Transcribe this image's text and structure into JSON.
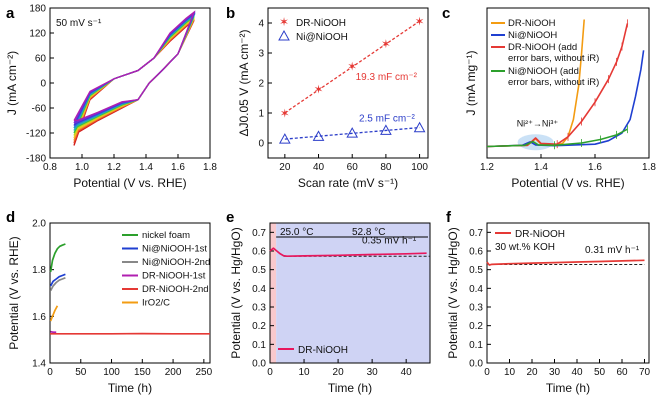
{
  "chart_data": [
    {
      "panel": "a",
      "type": "line",
      "annotation": "50 mV s⁻¹",
      "xlabel": "Potential (V vs. RHE)",
      "ylabel": "J (mA cm⁻²)",
      "xlim": [
        0.8,
        1.8
      ],
      "ylim": [
        -180,
        180
      ],
      "xticks": [
        "0.8",
        "1.0",
        "1.2",
        "1.4",
        "1.6",
        "1.8"
      ],
      "yticks": [
        "-180",
        "-120",
        "-60",
        "0",
        "60",
        "120",
        "180"
      ],
      "description_series": "multicolour cyclic voltammetry loops, rainbow colour gradient",
      "cv_colors": [
        "#d01c1c",
        "#e6442a",
        "#f28c28",
        "#f2c61f",
        "#b8d81f",
        "#3cbf3c",
        "#22b3b3",
        "#2a7fd6",
        "#3a3ad6",
        "#7a2ad6",
        "#b01fb0"
      ]
    },
    {
      "panel": "b",
      "type": "scatter",
      "xlabel": "Scan rate (mV s⁻¹)",
      "ylabel": "ΔJ0.05 V (mA cm⁻²)",
      "xlim": [
        10,
        105
      ],
      "ylim": [
        -0.5,
        4.5
      ],
      "xticks": [
        "20",
        "40",
        "60",
        "80",
        "100"
      ],
      "yticks": [
        "0",
        "1",
        "2",
        "3",
        "4"
      ],
      "x": [
        20,
        40,
        60,
        80,
        100
      ],
      "series": [
        {
          "name": "DR-NiOOH",
          "color": "#e53935",
          "marker": "star",
          "values": [
            0.99,
            1.78,
            2.55,
            3.3,
            4.05
          ],
          "fit_label": "19.3 mF cm⁻²"
        },
        {
          "name": "Ni@NiOOH",
          "color": "#2c3ec9",
          "marker": "triangle",
          "values": [
            0.13,
            0.22,
            0.33,
            0.42,
            0.51
          ],
          "fit_label": "2.5 mF cm⁻²"
        }
      ],
      "legend": "top-left"
    },
    {
      "panel": "c",
      "type": "line",
      "xlabel": "Potential (V vs. RHE)",
      "ylabel": "J (mA mg⁻¹)",
      "xlim": [
        1.2,
        1.8
      ],
      "ylim": [
        -3,
        36
      ],
      "xticks": [
        "1.2",
        "1.4",
        "1.6",
        "1.8"
      ],
      "annotation": "Ni²⁺→Ni³⁺",
      "series": [
        {
          "name": "DR-NiOOH",
          "color": "#f39c12",
          "x": [
            1.2,
            1.35,
            1.38,
            1.4,
            1.45,
            1.48,
            1.5,
            1.52,
            1.54,
            1.55,
            1.56
          ],
          "y": [
            0,
            0.3,
            2.0,
            0.6,
            0.3,
            0.8,
            2.5,
            7,
            16,
            24,
            33
          ]
        },
        {
          "name": "Ni@NiOOH",
          "color": "#1f3fd1",
          "x": [
            1.2,
            1.33,
            1.36,
            1.38,
            1.45,
            1.6,
            1.65,
            1.7,
            1.73,
            1.75,
            1.77,
            1.78
          ],
          "y": [
            0,
            0.3,
            1.2,
            0.4,
            0.2,
            0.6,
            1.5,
            3.5,
            7,
            13,
            20,
            25
          ]
        },
        {
          "name": "DR-NiOOH (add error bars, without iR)",
          "color": "#e53935",
          "x": [
            1.2,
            1.35,
            1.38,
            1.4,
            1.46,
            1.5,
            1.55,
            1.6,
            1.65,
            1.68,
            1.7,
            1.72
          ],
          "y": [
            0,
            0.3,
            2.2,
            0.8,
            0.6,
            2.5,
            6.5,
            11.5,
            17.5,
            22,
            26,
            32
          ]
        },
        {
          "name": "Ni@NiOOH (add error bars, without iR)",
          "color": "#2ca02c",
          "x": [
            1.2,
            1.34,
            1.37,
            1.39,
            1.45,
            1.55,
            1.62,
            1.68,
            1.72
          ],
          "y": [
            0,
            0.3,
            1.3,
            0.4,
            0.3,
            0.9,
            1.8,
            3.0,
            4.5
          ]
        }
      ],
      "legend": "top-left"
    },
    {
      "panel": "d",
      "type": "line",
      "xlabel": "Time (h)",
      "ylabel": "Potential (V vs. RHE)",
      "xlim": [
        0,
        260
      ],
      "ylim": [
        1.4,
        2.0
      ],
      "xticks": [
        "0",
        "50",
        "100",
        "150",
        "200",
        "250"
      ],
      "yticks": [
        "1.4",
        "1.6",
        "1.8",
        "2.0"
      ],
      "series": [
        {
          "name": "nickel foam",
          "color": "#2ca02c",
          "x": [
            1,
            4,
            8,
            12,
            16,
            20,
            25
          ],
          "y": [
            1.79,
            1.84,
            1.87,
            1.89,
            1.9,
            1.905,
            1.91
          ]
        },
        {
          "name": "Ni@NiOOH-1st",
          "color": "#1f3fd1",
          "x": [
            1,
            5,
            10,
            15,
            20,
            25
          ],
          "y": [
            1.73,
            1.75,
            1.76,
            1.77,
            1.775,
            1.78
          ]
        },
        {
          "name": "Ni@NiOOH-2nd",
          "color": "#888888",
          "x": [
            1,
            5,
            10,
            15,
            20,
            25
          ],
          "y": [
            1.71,
            1.73,
            1.745,
            1.755,
            1.76,
            1.765
          ]
        },
        {
          "name": "DR-NiOOH-1st",
          "color": "#b01fb0",
          "x": [
            1,
            3,
            6,
            10
          ],
          "y": [
            1.535,
            1.533,
            1.532,
            1.532
          ]
        },
        {
          "name": "DR-NiOOH-2nd",
          "color": "#e53935",
          "x": [
            0,
            50,
            100,
            150,
            200,
            250,
            260
          ],
          "y": [
            1.525,
            1.525,
            1.525,
            1.526,
            1.525,
            1.525,
            1.525
          ]
        },
        {
          "name": "IrO2/C",
          "color": "#f39c12",
          "x": [
            1,
            4,
            8,
            12
          ],
          "y": [
            1.58,
            1.6,
            1.625,
            1.645
          ]
        }
      ],
      "legend": "right"
    },
    {
      "panel": "e",
      "type": "line",
      "xlabel": "Time (h)",
      "ylabel": "Potential (V vs. Hg/HgO)",
      "xlim": [
        0,
        47
      ],
      "ylim": [
        0.0,
        0.75
      ],
      "xticks": [
        "0",
        "10",
        "20",
        "30",
        "40"
      ],
      "yticks": [
        "0.0",
        "0.1",
        "0.2",
        "0.3",
        "0.4",
        "0.5",
        "0.6",
        "0.7"
      ],
      "annotations": [
        "25.0 °C",
        "52.8 °C",
        "0.35 mV h⁻¹"
      ],
      "series": [
        {
          "name": "DR-NiOOH",
          "color": "#e8175d",
          "x": [
            0,
            1,
            2,
            3,
            4,
            5,
            10,
            20,
            30,
            40,
            46
          ],
          "y": [
            0.6,
            0.615,
            0.6,
            0.585,
            0.575,
            0.572,
            0.574,
            0.577,
            0.581,
            0.585,
            0.588
          ]
        }
      ],
      "baseline": 0.572,
      "legend": "bottom-left"
    },
    {
      "panel": "f",
      "type": "line",
      "xlabel": "Time (h)",
      "ylabel": "Potential (V vs. Hg/HgO)",
      "xlim": [
        0,
        72
      ],
      "ylim": [
        0.0,
        0.75
      ],
      "xticks": [
        "0",
        "10",
        "20",
        "30",
        "40",
        "50",
        "60",
        "70"
      ],
      "yticks": [
        "0.0",
        "0.1",
        "0.2",
        "0.3",
        "0.4",
        "0.5",
        "0.6",
        "0.7"
      ],
      "annotations": [
        "0.31 mV h⁻¹"
      ],
      "series": [
        {
          "name": "DR-NiOOH",
          "color": "#e53935",
          "x": [
            0,
            1,
            2,
            5,
            10,
            20,
            30,
            40,
            50,
            60,
            70
          ],
          "y": [
            0.54,
            0.525,
            0.528,
            0.53,
            0.532,
            0.535,
            0.538,
            0.541,
            0.544,
            0.547,
            0.55
          ]
        }
      ],
      "legend_note": "30 wt.% KOH",
      "baseline": 0.528,
      "legend": "top-left"
    }
  ],
  "panels": {
    "a": {
      "letter": "a"
    },
    "b": {
      "letter": "b"
    },
    "c": {
      "letter": "c"
    },
    "d": {
      "letter": "d"
    },
    "e": {
      "letter": "e"
    },
    "f": {
      "letter": "f"
    }
  }
}
